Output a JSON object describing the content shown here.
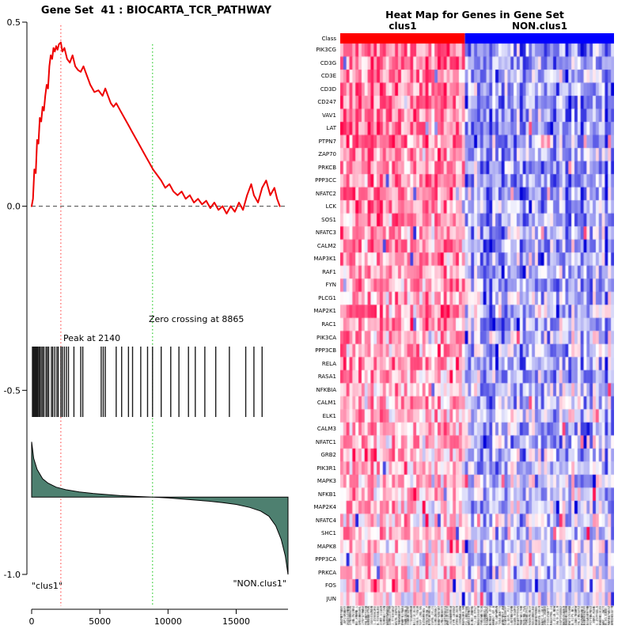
{
  "chart_data": [
    {
      "type": "line",
      "title": "Gene Set  41 : BIOCARTA_TCR_PATHWAY",
      "xlabel": "",
      "ylabel": "",
      "xlim": [
        0,
        18800
      ],
      "ylim": [
        -1.05,
        0.5
      ],
      "x_ticks": [
        0,
        5000,
        10000,
        15000
      ],
      "y_tick_values": [
        0.5,
        0.0,
        -0.5,
        -1.0
      ],
      "y_tick_labels": [
        "0.5",
        "0.0",
        "-0.5",
        "-1.0"
      ],
      "peak": {
        "x": 2140,
        "label": "Peak at 2140",
        "color": "#ff5555"
      },
      "zero_crossing": {
        "x": 8865,
        "label": "Zero crossing at 8865",
        "color": "#2ecc2e"
      },
      "zero_line_y": 0,
      "annotations": {
        "left": "\"clus1\"",
        "right": "\"NON.clus1\""
      },
      "series": [
        {
          "name": "running_enrichment_score",
          "color": "#ee0000",
          "x": [
            0,
            100,
            200,
            300,
            400,
            500,
            600,
            700,
            800,
            900,
            1000,
            1100,
            1200,
            1300,
            1400,
            1500,
            1600,
            1700,
            1800,
            1900,
            2000,
            2140,
            2250,
            2400,
            2600,
            2800,
            3000,
            3200,
            3400,
            3600,
            3800,
            4000,
            4300,
            4600,
            4900,
            5200,
            5400,
            5600,
            5800,
            6000,
            6200,
            6500,
            6800,
            7100,
            7400,
            7700,
            8000,
            8300,
            8600,
            8900,
            9200,
            9500,
            9800,
            10100,
            10400,
            10700,
            11000,
            11300,
            11600,
            11900,
            12200,
            12500,
            12800,
            13100,
            13400,
            13700,
            14000,
            14300,
            14600,
            14900,
            15200,
            15500,
            15800,
            16100,
            16300,
            16600,
            16900,
            17200,
            17500,
            17800,
            18000,
            18200
          ],
          "y": [
            0,
            0.02,
            0.1,
            0.09,
            0.18,
            0.17,
            0.24,
            0.23,
            0.27,
            0.26,
            0.3,
            0.33,
            0.32,
            0.38,
            0.41,
            0.4,
            0.43,
            0.42,
            0.435,
            0.425,
            0.44,
            0.445,
            0.42,
            0.43,
            0.4,
            0.39,
            0.41,
            0.38,
            0.37,
            0.365,
            0.38,
            0.36,
            0.33,
            0.31,
            0.315,
            0.3,
            0.32,
            0.3,
            0.28,
            0.27,
            0.28,
            0.26,
            0.24,
            0.22,
            0.2,
            0.18,
            0.16,
            0.14,
            0.12,
            0.1,
            0.085,
            0.07,
            0.05,
            0.06,
            0.04,
            0.03,
            0.04,
            0.02,
            0.03,
            0.01,
            0.02,
            0.005,
            0.015,
            -0.005,
            0.01,
            -0.01,
            0.0,
            -0.02,
            0.0,
            -0.015,
            0.01,
            -0.01,
            0.03,
            0.06,
            0.03,
            0.01,
            0.05,
            0.07,
            0.03,
            0.05,
            0.02,
            0.0
          ]
        },
        {
          "name": "ranked_list_metric",
          "color_fill": "#4e8070",
          "baseline": -0.79,
          "x": [
            0,
            150,
            400,
            800,
            1200,
            1800,
            2500,
            3500,
            4500,
            5500,
            6500,
            7500,
            8865,
            10000,
            11000,
            12000,
            13000,
            14000,
            15000,
            16000,
            16800,
            17400,
            17900,
            18300,
            18600,
            18800
          ],
          "y": [
            -0.64,
            -0.685,
            -0.715,
            -0.74,
            -0.752,
            -0.763,
            -0.77,
            -0.776,
            -0.78,
            -0.783,
            -0.786,
            -0.788,
            -0.79,
            -0.792,
            -0.795,
            -0.798,
            -0.801,
            -0.805,
            -0.81,
            -0.818,
            -0.828,
            -0.842,
            -0.868,
            -0.905,
            -0.95,
            -1.0
          ]
        }
      ],
      "gene_hits_x": [
        60,
        80,
        150,
        200,
        260,
        320,
        380,
        440,
        520,
        600,
        700,
        800,
        900,
        1050,
        1150,
        1250,
        1450,
        1550,
        1700,
        1850,
        1950,
        2140,
        2250,
        2400,
        2550,
        2700,
        3100,
        3600,
        3750,
        5100,
        5250,
        5400,
        6200,
        6600,
        7100,
        7400,
        8000,
        8500,
        8865,
        9500,
        10200,
        10800,
        11500,
        12000,
        12700,
        13500,
        14500,
        15700,
        16300,
        16900
      ]
    },
    {
      "type": "heatmap",
      "title": "Heat Map for Genes in Gene Set",
      "class_row_label": "Class",
      "col_groups": [
        {
          "label": "clus1",
          "color": "#ff0000",
          "n": 41
        },
        {
          "label": "NON.clus1",
          "color": "#0000ff",
          "n": 49
        }
      ],
      "genes": [
        "PIK3CG",
        "CD3G",
        "CD3E",
        "CD3D",
        "CD247",
        "VAV1",
        "LAT",
        "PTPN7",
        "ZAP70",
        "PRKCB",
        "PPP3CC",
        "NFATC2",
        "LCK",
        "SOS1",
        "NFATC3",
        "CALM2",
        "MAP3K1",
        "RAF1",
        "FYN",
        "PLCG1",
        "MAP2K1",
        "RAC1",
        "PIK3CA",
        "PPP3CB",
        "RELA",
        "RASA1",
        "NFKBIA",
        "CALM1",
        "ELK1",
        "CALM3",
        "NFATC1",
        "GRB2",
        "PIK3R1",
        "MAPK3",
        "NFKB1",
        "MAP2K4",
        "NFATC4",
        "SHC1",
        "MAPK8",
        "PPP3CA",
        "PRKCA",
        "FOS",
        "JUN"
      ],
      "palette": {
        "high": "#ff0000",
        "mid": "#ffffff",
        "low": "#0000d9"
      },
      "seed": 41
    }
  ]
}
